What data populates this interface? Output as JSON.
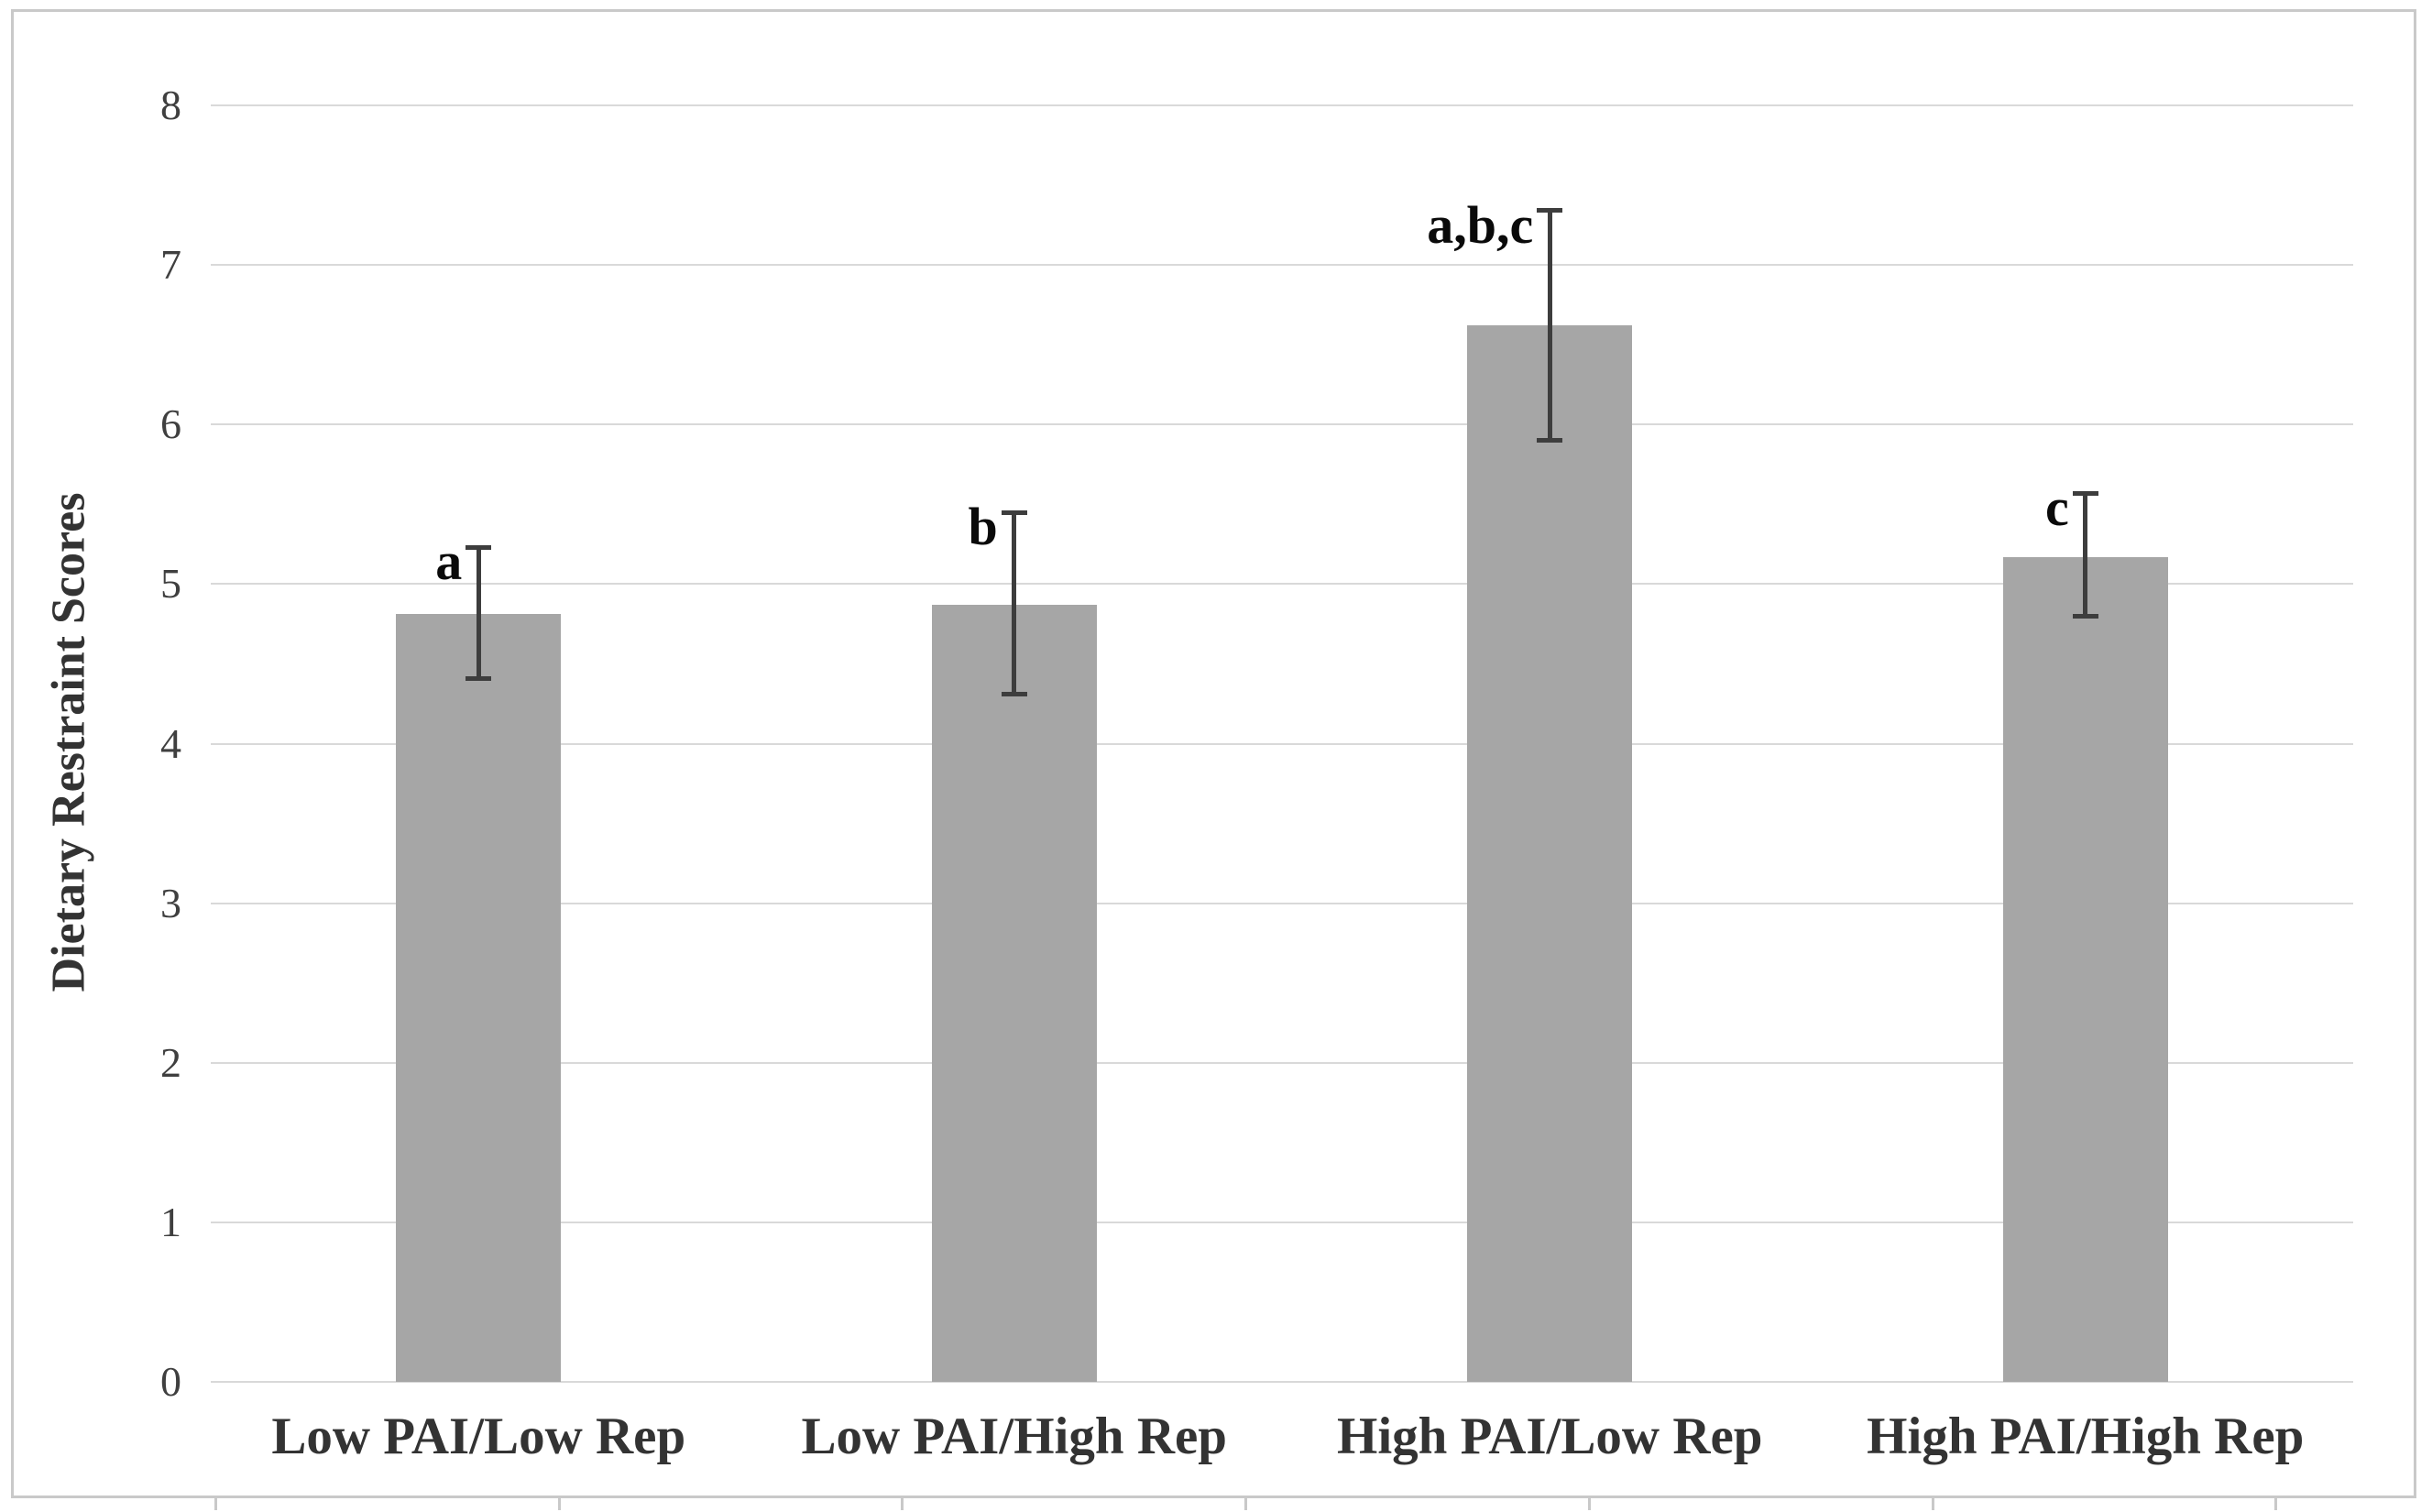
{
  "chart_data": {
    "type": "bar",
    "title": "",
    "ylabel": "Dietary Restraint Scores",
    "xlabel": "",
    "ylim": [
      0,
      8
    ],
    "yticks": [
      0,
      1,
      2,
      3,
      4,
      5,
      6,
      7,
      8
    ],
    "grid": true,
    "legend": null,
    "categories": [
      "Low PAI/Low Rep",
      "Low PAI/High Rep",
      "High PAI/Low Rep",
      "High PAI/High Rep"
    ],
    "values": [
      4.81,
      4.87,
      6.62,
      5.17
    ],
    "error_plus": [
      0.42,
      0.58,
      0.72,
      0.4
    ],
    "error_minus": [
      0.4,
      0.56,
      0.72,
      0.37
    ],
    "annotations": [
      "a",
      "b",
      "a,b,c",
      "c"
    ],
    "colors": {
      "bar_fill": "#a6a6a6",
      "error_bar": "#3d3d3d",
      "gridline": "#d9d9d9",
      "border": "#c9c9c9",
      "tick_label": "#3f3f3f",
      "category_label": "#333333",
      "axis_title": "#333333",
      "annotation": "#0a0a0a"
    }
  }
}
